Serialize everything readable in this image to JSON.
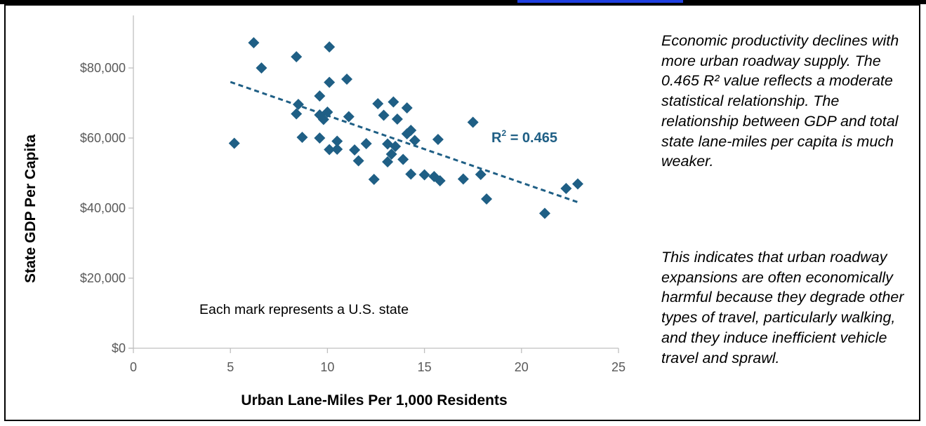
{
  "colors": {
    "marker": "#1f5f85",
    "trendline": "#1f5f85",
    "axis": "#bfbfbf",
    "tick_label": "#595959",
    "label": "#000000"
  },
  "chart_data": {
    "type": "scatter",
    "title": "",
    "xlabel": "Urban Lane-Miles Per 1,000 Residents",
    "ylabel": "State GDP Per Capita",
    "xlim": [
      0,
      25
    ],
    "ylim": [
      0,
      95000
    ],
    "x_ticks": [
      0,
      5,
      10,
      15,
      20,
      25
    ],
    "y_ticks": [
      0,
      20000,
      40000,
      60000,
      80000
    ],
    "x_tick_labels": [
      "0",
      "5",
      "10",
      "15",
      "20",
      "25"
    ],
    "y_tick_labels": [
      "$0",
      "$20,000",
      "$40,000",
      "$60,000",
      "$80,000"
    ],
    "grid": false,
    "legend": "none",
    "marker_shape": "diamond",
    "annotation": "Each mark represents a U.S. state",
    "trendline": {
      "type": "linear",
      "x": [
        5.0,
        23.0
      ],
      "y": [
        76000,
        41500
      ],
      "label": "R",
      "label_exponent": "2",
      "label_value": " = 0.465"
    },
    "points": [
      [
        6.2,
        87200
      ],
      [
        10.1,
        86000
      ],
      [
        8.4,
        83200
      ],
      [
        6.6,
        80000
      ],
      [
        11.0,
        76800
      ],
      [
        10.1,
        75900
      ],
      [
        9.6,
        72000
      ],
      [
        13.4,
        70300
      ],
      [
        8.5,
        69600
      ],
      [
        12.6,
        69800
      ],
      [
        14.1,
        68600
      ],
      [
        10.0,
        67400
      ],
      [
        8.4,
        66900
      ],
      [
        9.6,
        66600
      ],
      [
        12.9,
        66500
      ],
      [
        11.1,
        66100
      ],
      [
        9.8,
        65300
      ],
      [
        13.6,
        65400
      ],
      [
        17.5,
        64500
      ],
      [
        14.3,
        62200
      ],
      [
        14.1,
        61200
      ],
      [
        8.7,
        60200
      ],
      [
        9.6,
        60000
      ],
      [
        15.7,
        59600
      ],
      [
        10.5,
        59100
      ],
      [
        14.5,
        59300
      ],
      [
        5.2,
        58500
      ],
      [
        12.0,
        58400
      ],
      [
        13.1,
        58300
      ],
      [
        13.5,
        57600
      ],
      [
        10.1,
        56700
      ],
      [
        10.5,
        56800
      ],
      [
        11.4,
        56600
      ],
      [
        13.3,
        55400
      ],
      [
        11.6,
        53500
      ],
      [
        13.1,
        53200
      ],
      [
        13.9,
        53900
      ],
      [
        12.4,
        48200
      ],
      [
        14.3,
        49700
      ],
      [
        15.0,
        49500
      ],
      [
        15.5,
        49000
      ],
      [
        15.8,
        47800
      ],
      [
        17.0,
        48300
      ],
      [
        17.9,
        49600
      ],
      [
        18.2,
        42600
      ],
      [
        21.2,
        38500
      ],
      [
        22.3,
        45600
      ],
      [
        22.9,
        46900
      ]
    ]
  },
  "notes": [
    "Economic productivity declines with more urban roadway supply. The 0.465 R² value reflects a moderate statistical relationship. The relationship between GDP and total state lane-miles per capita is much weaker.",
    "This indicates that urban roadway expansions are often economically harmful because they degrade other types of travel, particularly walking, and they induce inefficient vehicle travel and sprawl."
  ]
}
